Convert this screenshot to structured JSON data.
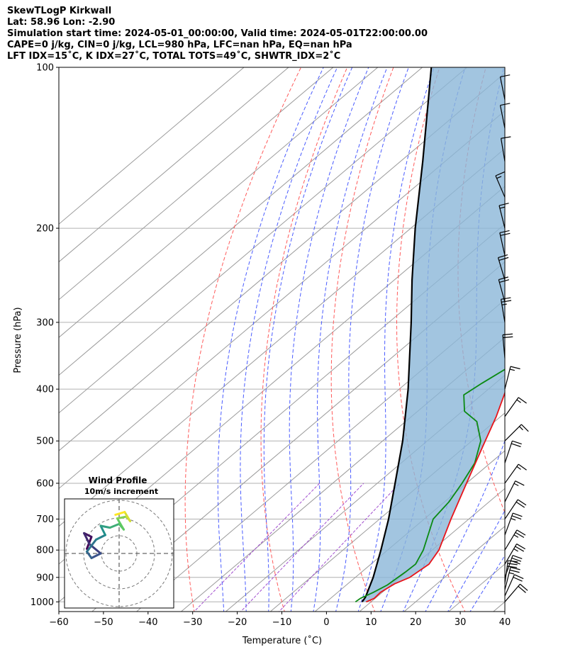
{
  "header": {
    "line1": "SkewTLogP Kirkwall",
    "line2": "Lat: 58.96   Lon: -2.90",
    "line3": "Simulation start time: 2024-05-01_00:00:00, Valid time: 2024-05-01T22:00:00.00",
    "line4": "CAPE=0 j/kg, CIN=0 j/kg, LCL=980 hPa, LFC=nan hPa, EQ=nan hPa",
    "line5": "LFT IDX=15˚C, K IDX=27˚C, TOTAL TOTS=49˚C, SHWTR_IDX=2˚C"
  },
  "colors": {
    "temperature": "#e8141a",
    "dewpoint": "#0a8a12",
    "parcel": "#000000",
    "cape_fill": "#8bb7d8",
    "dry_adiabat": "#ff5a5a",
    "moist_adiabat": "#4a5cff",
    "mixing_ratio": "#a24fcf",
    "isotherm": "#9a9a9a"
  },
  "chart_data": {
    "type": "line",
    "title": "SkewTLogP Kirkwall",
    "xlabel": "Temperature (˚C)",
    "ylabel": "Pressure (hPa)",
    "xlim": [
      -60,
      40
    ],
    "ylim": [
      1050,
      100
    ],
    "x_ticks": [
      "−60",
      "−50",
      "−40",
      "−30",
      "−20",
      "−10",
      "0",
      "10",
      "20",
      "30",
      "40"
    ],
    "x_tick_values": [
      -60,
      -50,
      -40,
      -30,
      -20,
      -10,
      0,
      10,
      20,
      30,
      40
    ],
    "y_ticks": [
      "100",
      "200",
      "300",
      "400",
      "500",
      "600",
      "700",
      "800",
      "900",
      "1000"
    ],
    "y_tick_values": [
      100,
      200,
      300,
      400,
      500,
      600,
      700,
      800,
      900,
      1000
    ],
    "temperature": [
      [
        1000,
        8.9
      ],
      [
        985,
        9.8
      ],
      [
        960,
        9.6
      ],
      [
        925,
        10.5
      ],
      [
        900,
        12.2
      ],
      [
        850,
        13.0
      ],
      [
        800,
        11.5
      ],
      [
        700,
        6.0
      ],
      [
        600,
        0.0
      ],
      [
        500,
        -7.0
      ],
      [
        450,
        -11.0
      ],
      [
        400,
        -16.0
      ],
      [
        350,
        -21.5
      ],
      [
        300,
        -27.5
      ],
      [
        250,
        -35.0
      ],
      [
        225,
        -39.5
      ],
      [
        213,
        -42.0
      ],
      [
        200,
        -42.5
      ],
      [
        185,
        -44.0
      ],
      [
        170,
        -46.0
      ],
      [
        150,
        -49.5
      ],
      [
        130,
        -52.0
      ],
      [
        120,
        -53.0
      ],
      [
        110,
        -53.5
      ],
      [
        100,
        -54.0
      ]
    ],
    "dewpoint": [
      [
        1000,
        6.5
      ],
      [
        985,
        6.7
      ],
      [
        960,
        8.0
      ],
      [
        930,
        9.2
      ],
      [
        880,
        9.8
      ],
      [
        850,
        10.0
      ],
      [
        800,
        8.0
      ],
      [
        700,
        2.0
      ],
      [
        650,
        1.0
      ],
      [
        600,
        -1.0
      ],
      [
        550,
        -3.5
      ],
      [
        500,
        -8.0
      ],
      [
        460,
        -14.0
      ],
      [
        440,
        -19.5
      ],
      [
        410,
        -24.0
      ],
      [
        390,
        -23.0
      ],
      [
        360,
        -21.0
      ],
      [
        330,
        -24.5
      ],
      [
        300,
        -30.5
      ],
      [
        270,
        -36.5
      ],
      [
        230,
        -46.0
      ],
      [
        215,
        -49.0
      ],
      [
        200,
        -50.0
      ],
      [
        190,
        -52.0
      ],
      [
        170,
        -57.0
      ],
      [
        150,
        -59.5
      ],
      [
        100,
        -80.0
      ]
    ],
    "parcel": [
      [
        1000,
        8.0
      ],
      [
        980,
        7.5
      ],
      [
        900,
        4.0
      ],
      [
        800,
        -1.5
      ],
      [
        700,
        -8.0
      ],
      [
        600,
        -16.0
      ],
      [
        500,
        -25.5
      ],
      [
        400,
        -38.0
      ],
      [
        300,
        -55.0
      ],
      [
        250,
        -66.0
      ],
      [
        200,
        -79.0
      ],
      [
        150,
        -95.0
      ],
      [
        100,
        -118.0
      ]
    ],
    "dry_adiabats_theta_c": [
      -30,
      -10,
      10,
      30,
      50,
      70,
      90,
      110,
      130,
      150,
      170
    ],
    "moist_adiabats_c": [
      -20,
      -15,
      -10,
      -5,
      0,
      5,
      10,
      15,
      20,
      25,
      30,
      35
    ],
    "mixing_ratios_gkg": [
      0.4,
      1.0,
      2.0
    ],
    "wind_barbs": [
      {
        "p": 1000,
        "u": -6,
        "v": -7
      },
      {
        "p": 975,
        "u": -4,
        "v": -9
      },
      {
        "p": 950,
        "u": -3,
        "v": -12
      },
      {
        "p": 925,
        "u": -2,
        "v": -15
      },
      {
        "p": 900,
        "u": -5,
        "v": -14
      },
      {
        "p": 850,
        "u": -7,
        "v": -12
      },
      {
        "p": 800,
        "u": -6,
        "v": -10
      },
      {
        "p": 750,
        "u": -4,
        "v": -11
      },
      {
        "p": 700,
        "u": -6,
        "v": -9
      },
      {
        "p": 650,
        "u": -4,
        "v": -8
      },
      {
        "p": 600,
        "u": -5,
        "v": -7
      },
      {
        "p": 550,
        "u": -3,
        "v": -9
      },
      {
        "p": 500,
        "u": -6,
        "v": -6
      },
      {
        "p": 450,
        "u": -5,
        "v": -7
      },
      {
        "p": 400,
        "u": -2,
        "v": -8
      },
      {
        "p": 350,
        "u": 1,
        "v": -11
      },
      {
        "p": 300,
        "u": 2,
        "v": -12
      },
      {
        "p": 275,
        "u": 3,
        "v": -11
      },
      {
        "p": 250,
        "u": 3,
        "v": -10
      },
      {
        "p": 225,
        "u": 2,
        "v": -9
      },
      {
        "p": 200,
        "u": 2,
        "v": -8
      },
      {
        "p": 175,
        "u": 3,
        "v": -7
      },
      {
        "p": 150,
        "u": 1,
        "v": -6
      },
      {
        "p": 130,
        "u": 1,
        "v": -5
      },
      {
        "p": 115,
        "u": 1,
        "v": -5
      }
    ],
    "hodograph": {
      "title": "Wind Profile",
      "subtitle": "10m/s increment",
      "points": [
        [
          -3.5,
          0.5
        ],
        [
          -3.0,
          1.8
        ],
        [
          -3.8,
          2.2
        ],
        [
          -3.2,
          1.0
        ],
        [
          -2.0,
          0.0
        ],
        [
          -3.0,
          -0.5
        ],
        [
          -3.5,
          0.2
        ],
        [
          -2.5,
          1.5
        ],
        [
          -1.5,
          2.0
        ],
        [
          -2.0,
          3.0
        ],
        [
          -1.0,
          2.8
        ],
        [
          0.0,
          3.2
        ],
        [
          0.5,
          2.6
        ],
        [
          -0.2,
          3.8
        ],
        [
          0.8,
          4.0
        ],
        [
          1.2,
          3.5
        ],
        [
          0.6,
          4.5
        ],
        [
          -0.4,
          4.2
        ]
      ]
    }
  }
}
